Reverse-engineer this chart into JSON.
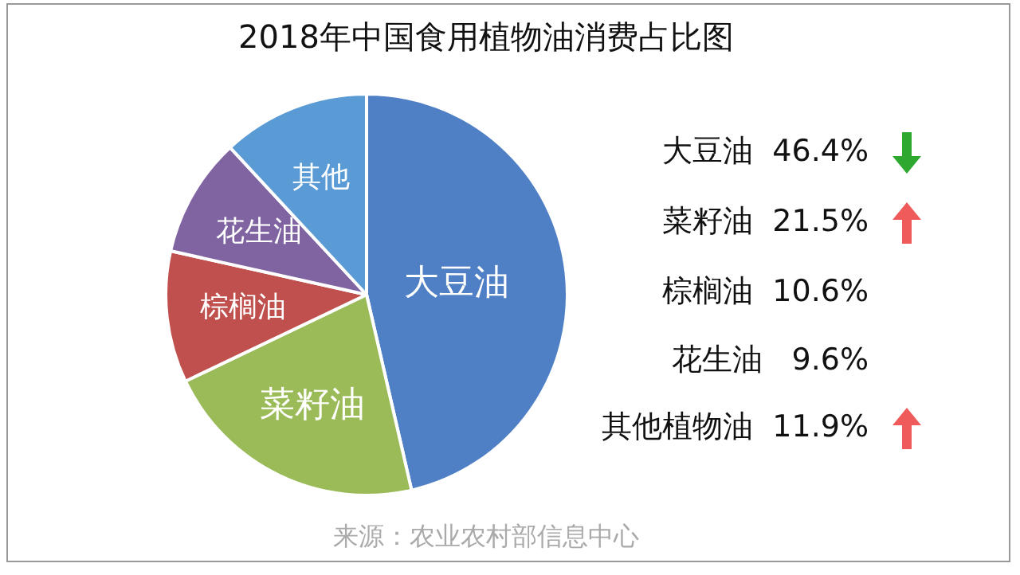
{
  "chart_data": {
    "type": "pie",
    "title": "2018年中国食用植物油消费占比图",
    "categories": [
      "大豆油",
      "菜籽油",
      "棕榈油",
      "花生油",
      "其他"
    ],
    "values": [
      46.4,
      21.5,
      10.6,
      9.6,
      11.9
    ],
    "colors": [
      "#4f7fc4",
      "#9bbb59",
      "#c0504d",
      "#8064a2",
      "#5b9bd5"
    ],
    "legend": false,
    "annotations": [
      "大豆油  46.4%",
      "菜籽油  21.5%",
      "棕榈油  10.6%",
      "花生油   9.6%",
      "其他植物油  11.9%",
      "来源：农业农村部信息中心"
    ]
  }
}
